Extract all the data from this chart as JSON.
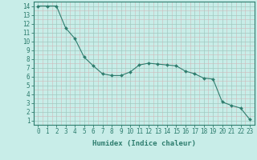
{
  "x": [
    0,
    1,
    2,
    3,
    4,
    5,
    6,
    7,
    8,
    9,
    10,
    11,
    12,
    13,
    14,
    15,
    16,
    17,
    18,
    19,
    20,
    21,
    22,
    23
  ],
  "y": [
    14,
    14,
    14,
    11.5,
    10.3,
    8.2,
    7.2,
    6.3,
    6.1,
    6.1,
    6.5,
    7.3,
    7.5,
    7.4,
    7.3,
    7.2,
    6.6,
    6.3,
    5.8,
    5.7,
    3.1,
    2.7,
    2.4,
    1.1
  ],
  "line_color": "#2e7d6e",
  "marker": "D",
  "marker_size": 2.0,
  "bg_color": "#c8ede8",
  "grid_color_major": "#a0c8c0",
  "grid_color_minor": "#d0b8b8",
  "xlabel": "Humidex (Indice chaleur)",
  "xlim": [
    -0.5,
    23.5
  ],
  "ylim": [
    0.5,
    14.5
  ],
  "xticks": [
    0,
    1,
    2,
    3,
    4,
    5,
    6,
    7,
    8,
    9,
    10,
    11,
    12,
    13,
    14,
    15,
    16,
    17,
    18,
    19,
    20,
    21,
    22,
    23
  ],
  "yticks": [
    1,
    2,
    3,
    4,
    5,
    6,
    7,
    8,
    9,
    10,
    11,
    12,
    13,
    14
  ],
  "axis_color": "#2e7d6e",
  "label_fontsize": 6.5,
  "tick_fontsize": 5.5
}
